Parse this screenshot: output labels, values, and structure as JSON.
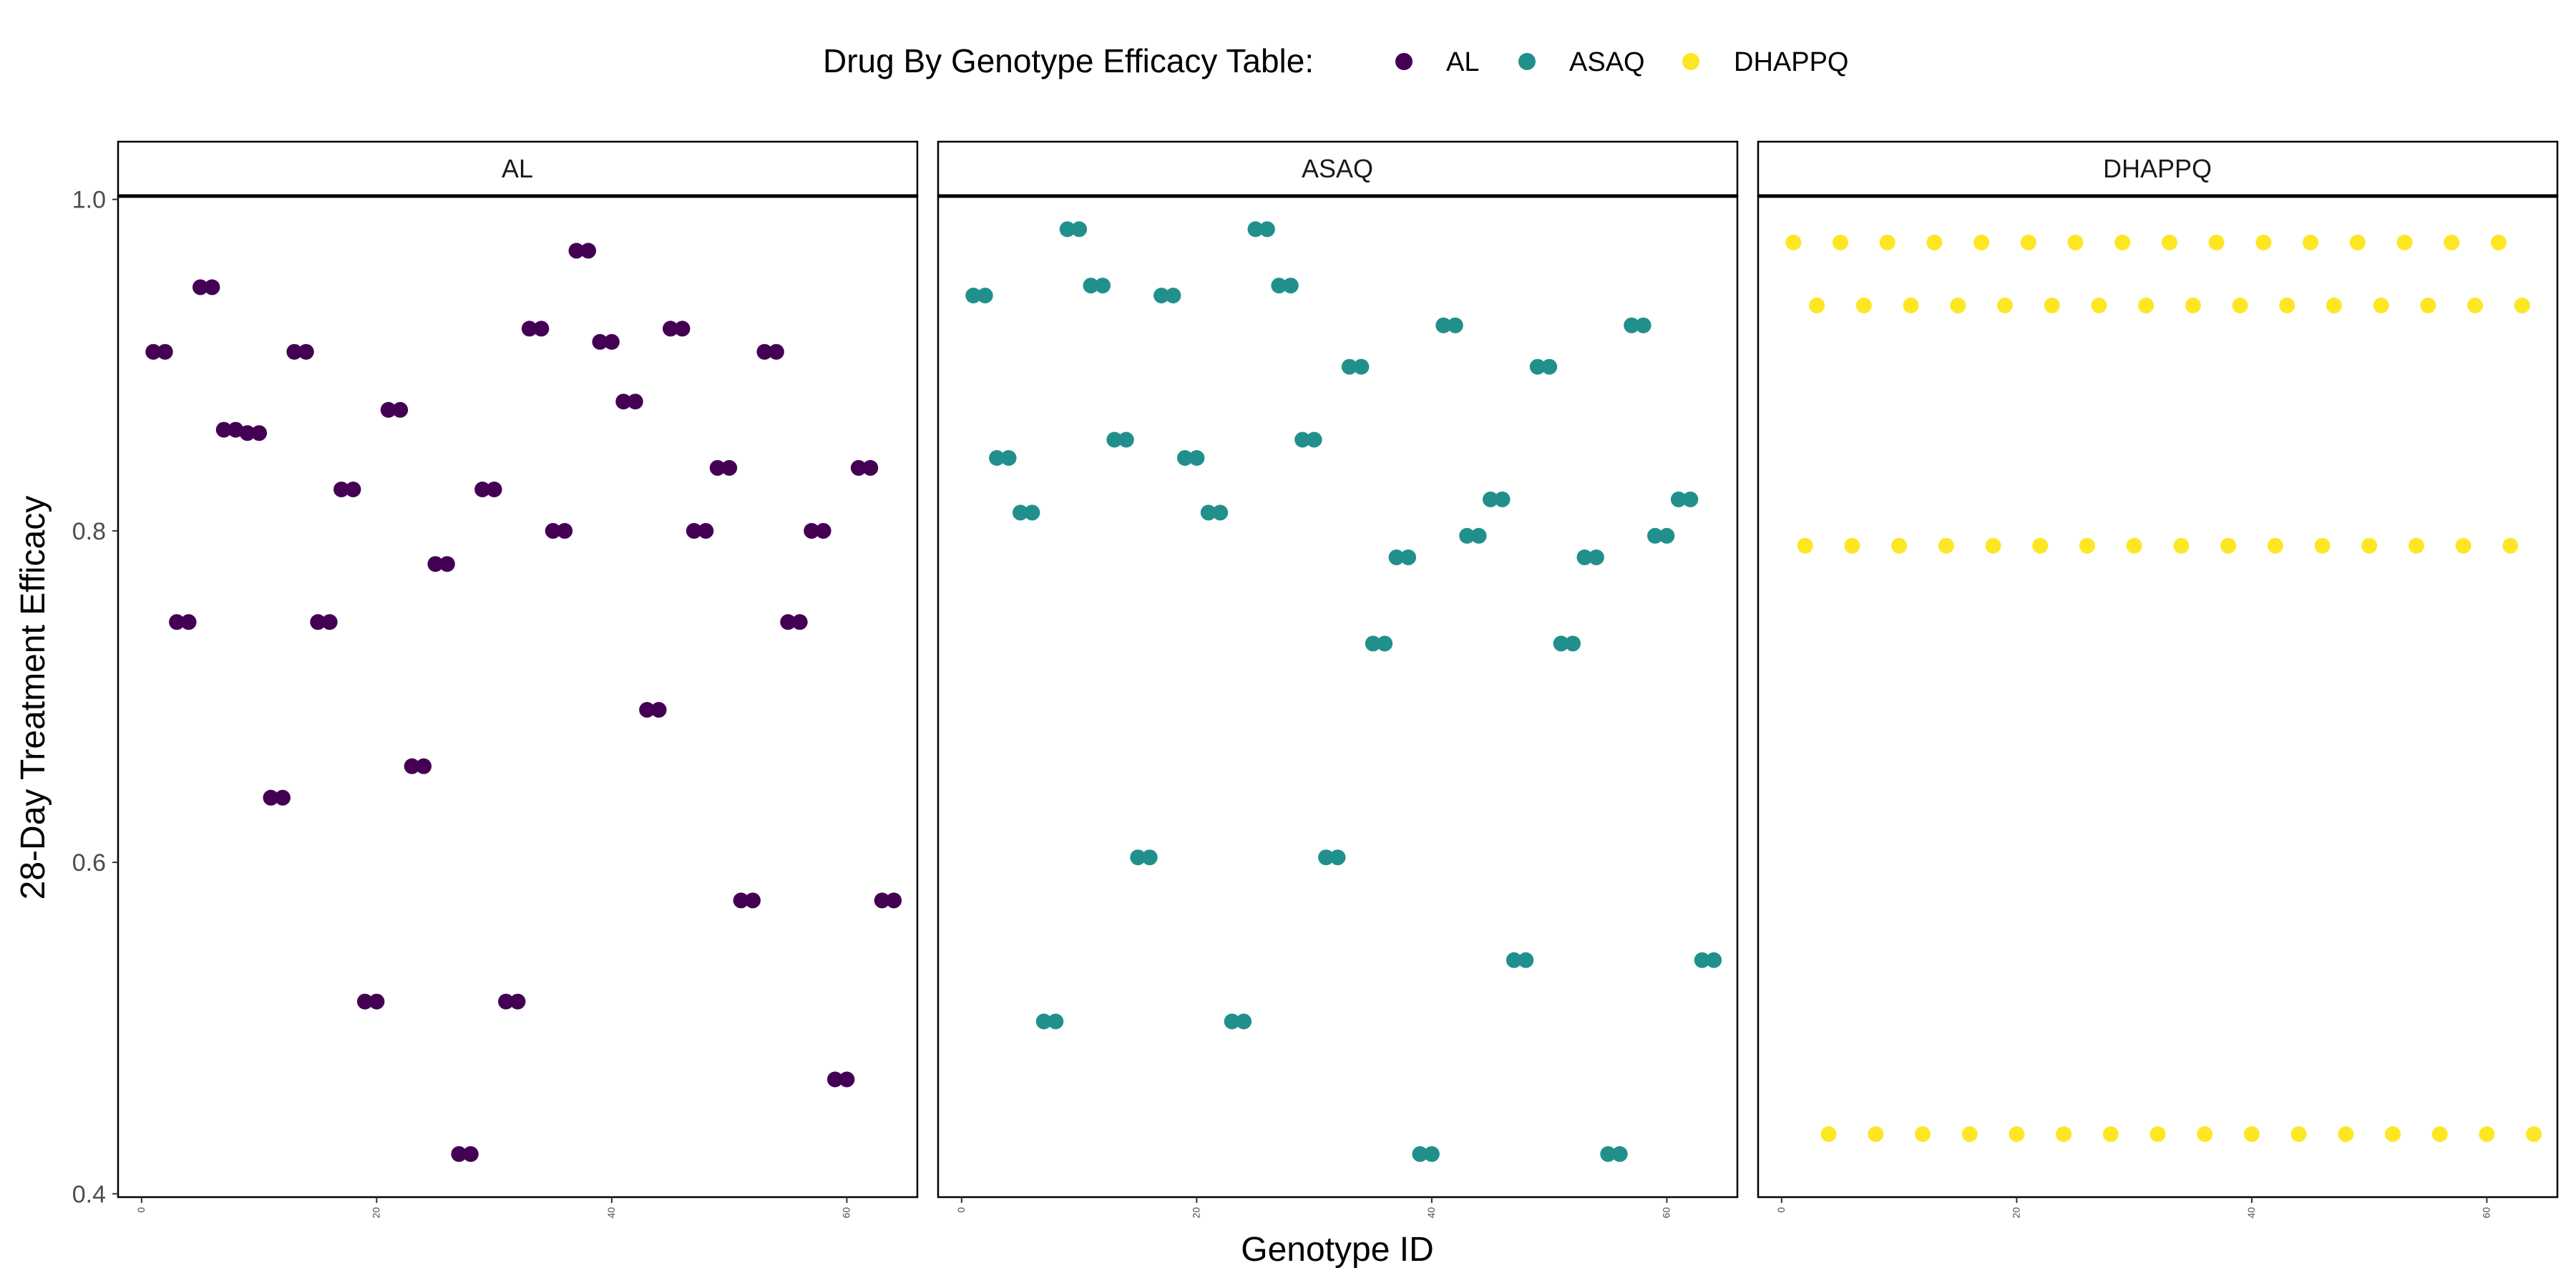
{
  "chart_data": {
    "type": "scatter",
    "legend_title": "Drug By Genotype Efficacy Table:",
    "legend_position": "top",
    "xlabel": "Genotype ID",
    "ylabel": "28-Day Treatment Efficacy",
    "xlim": [
      -2,
      66
    ],
    "ylim": [
      0.398,
      1.002
    ],
    "x_ticks": [
      "0",
      "20",
      "40",
      "60"
    ],
    "y_ticks": [
      "0.4",
      "0.6",
      "0.8",
      "1.0"
    ],
    "grid": false,
    "series": [
      {
        "name": "AL",
        "color": "#440154",
        "x": [
          1,
          2,
          3,
          4,
          5,
          6,
          7,
          8,
          9,
          10,
          11,
          12,
          13,
          14,
          15,
          16,
          17,
          18,
          19,
          20,
          21,
          22,
          23,
          24,
          25,
          26,
          27,
          28,
          29,
          30,
          31,
          32,
          33,
          34,
          35,
          36,
          37,
          38,
          39,
          40,
          41,
          42,
          43,
          44,
          45,
          46,
          47,
          48,
          49,
          50,
          51,
          52,
          53,
          54,
          55,
          56,
          57,
          58,
          59,
          60,
          61,
          62,
          63,
          64
        ],
        "y": [
          0.908,
          0.908,
          0.745,
          0.745,
          0.947,
          0.947,
          0.861,
          0.861,
          0.859,
          0.859,
          0.639,
          0.639,
          0.908,
          0.908,
          0.745,
          0.745,
          0.825,
          0.825,
          0.516,
          0.516,
          0.873,
          0.873,
          0.658,
          0.658,
          0.78,
          0.78,
          0.424,
          0.424,
          0.825,
          0.825,
          0.516,
          0.516,
          0.922,
          0.922,
          0.8,
          0.8,
          0.969,
          0.969,
          0.914,
          0.914,
          0.878,
          0.878,
          0.692,
          0.692,
          0.922,
          0.922,
          0.8,
          0.8,
          0.838,
          0.838,
          0.577,
          0.577,
          0.908,
          0.908,
          0.745,
          0.745,
          0.8,
          0.8,
          0.469,
          0.469,
          0.838,
          0.838,
          0.577,
          0.577
        ]
      },
      {
        "name": "ASAQ",
        "color": "#21908C",
        "x": [
          1,
          2,
          3,
          4,
          5,
          6,
          7,
          8,
          9,
          10,
          11,
          12,
          13,
          14,
          15,
          16,
          17,
          18,
          19,
          20,
          21,
          22,
          23,
          24,
          25,
          26,
          27,
          28,
          29,
          30,
          31,
          32,
          33,
          34,
          35,
          36,
          37,
          38,
          39,
          40,
          41,
          42,
          43,
          44,
          45,
          46,
          47,
          48,
          49,
          50,
          51,
          52,
          53,
          54,
          55,
          56,
          57,
          58,
          59,
          60,
          61,
          62,
          63,
          64
        ],
        "y": [
          0.942,
          0.942,
          0.844,
          0.844,
          0.811,
          0.811,
          0.504,
          0.504,
          0.982,
          0.982,
          0.948,
          0.948,
          0.855,
          0.855,
          0.603,
          0.603,
          0.942,
          0.942,
          0.844,
          0.844,
          0.811,
          0.811,
          0.504,
          0.504,
          0.982,
          0.982,
          0.948,
          0.948,
          0.855,
          0.855,
          0.603,
          0.603,
          0.899,
          0.899,
          0.732,
          0.732,
          0.784,
          0.784,
          0.424,
          0.424,
          0.924,
          0.924,
          0.797,
          0.797,
          0.819,
          0.819,
          0.541,
          0.541,
          0.899,
          0.899,
          0.732,
          0.732,
          0.784,
          0.784,
          0.424,
          0.424,
          0.924,
          0.924,
          0.797,
          0.797,
          0.819,
          0.819,
          0.541,
          0.541
        ]
      },
      {
        "name": "DHAPPQ",
        "color": "#FDE725",
        "x": [
          1,
          2,
          3,
          4,
          5,
          6,
          7,
          8,
          9,
          10,
          11,
          12,
          13,
          14,
          15,
          16,
          17,
          18,
          19,
          20,
          21,
          22,
          23,
          24,
          25,
          26,
          27,
          28,
          29,
          30,
          31,
          32,
          33,
          34,
          35,
          36,
          37,
          38,
          39,
          40,
          41,
          42,
          43,
          44,
          45,
          46,
          47,
          48,
          49,
          50,
          51,
          52,
          53,
          54,
          55,
          56,
          57,
          58,
          59,
          60,
          61,
          62,
          63,
          64
        ],
        "y": [
          0.974,
          0.791,
          0.936,
          0.436,
          0.974,
          0.791,
          0.936,
          0.436,
          0.974,
          0.791,
          0.936,
          0.436,
          0.974,
          0.791,
          0.936,
          0.436,
          0.974,
          0.791,
          0.936,
          0.436,
          0.974,
          0.791,
          0.936,
          0.436,
          0.974,
          0.791,
          0.936,
          0.436,
          0.974,
          0.791,
          0.936,
          0.436,
          0.974,
          0.791,
          0.936,
          0.436,
          0.974,
          0.791,
          0.936,
          0.436,
          0.974,
          0.791,
          0.936,
          0.436,
          0.974,
          0.791,
          0.936,
          0.436,
          0.974,
          0.791,
          0.936,
          0.436,
          0.974,
          0.791,
          0.936,
          0.436,
          0.974,
          0.791,
          0.936,
          0.436,
          0.974,
          0.791,
          0.936,
          0.436
        ]
      }
    ],
    "facets": [
      "AL",
      "ASAQ",
      "DHAPPQ"
    ]
  }
}
